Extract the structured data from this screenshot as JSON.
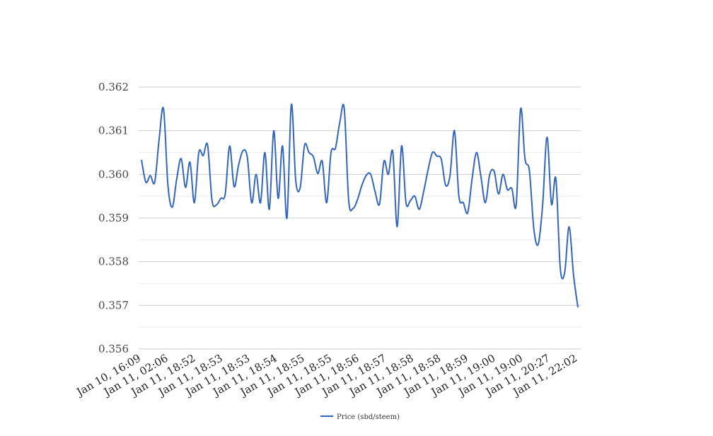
{
  "chart_data": {
    "type": "line",
    "title": "",
    "xlabel": "",
    "ylabel": "",
    "ylim": [
      0.356,
      0.362
    ],
    "y_ticks": [
      "0.356",
      "0.357",
      "0.358",
      "0.359",
      "0.360",
      "0.361",
      "0.362"
    ],
    "grid": "horizontal",
    "legend_position": "bottom",
    "x_tick_labels": [
      "Jan 10, 16:09",
      "Jan 11, 02:06",
      "Jan 11, 18:52",
      "Jan 11, 18:53",
      "Jan 11, 18:53",
      "Jan 11, 18:54",
      "Jan 11, 18:55",
      "Jan 11, 18:55",
      "Jan 11, 18:56",
      "Jan 11, 18:57",
      "Jan 11, 18:58",
      "Jan 11, 18:58",
      "Jan 11, 18:59",
      "Jan 11, 19:00",
      "Jan 11, 19:00",
      "Jan 11, 20:27",
      "Jan 11, 22:02"
    ],
    "series": [
      {
        "name": "Price (sbd/steem)",
        "color": "#3366bb",
        "values": [
          0.36033,
          0.35982,
          0.35997,
          0.35982,
          0.3608,
          0.3615,
          0.35975,
          0.35925,
          0.3599,
          0.36036,
          0.3597,
          0.36028,
          0.35935,
          0.3605,
          0.36043,
          0.36067,
          0.3594,
          0.3593,
          0.35945,
          0.35955,
          0.36065,
          0.35972,
          0.3602,
          0.36054,
          0.3604,
          0.35935,
          0.36,
          0.35935,
          0.3605,
          0.3592,
          0.361,
          0.35945,
          0.36065,
          0.359,
          0.3616,
          0.35985,
          0.3597,
          0.36067,
          0.3605,
          0.3604,
          0.36002,
          0.3603,
          0.35935,
          0.3605,
          0.3606,
          0.3612,
          0.3615,
          0.3594,
          0.35922,
          0.35942,
          0.35975,
          0.35998,
          0.36,
          0.3596,
          0.35932,
          0.3603,
          0.36,
          0.36052,
          0.3588,
          0.36065,
          0.35935,
          0.3594,
          0.3595,
          0.3592,
          0.3596,
          0.3601,
          0.3605,
          0.36042,
          0.36035,
          0.35975,
          0.35998,
          0.361,
          0.3595,
          0.35935,
          0.35912,
          0.3599,
          0.3605,
          0.35995,
          0.35935,
          0.36,
          0.36007,
          0.35955,
          0.36,
          0.35965,
          0.35968,
          0.3593,
          0.3615,
          0.36035,
          0.36008,
          0.35875,
          0.3584,
          0.3593,
          0.36085,
          0.35932,
          0.3599,
          0.35785,
          0.35775,
          0.3588,
          0.3577,
          0.35695
        ]
      }
    ]
  }
}
